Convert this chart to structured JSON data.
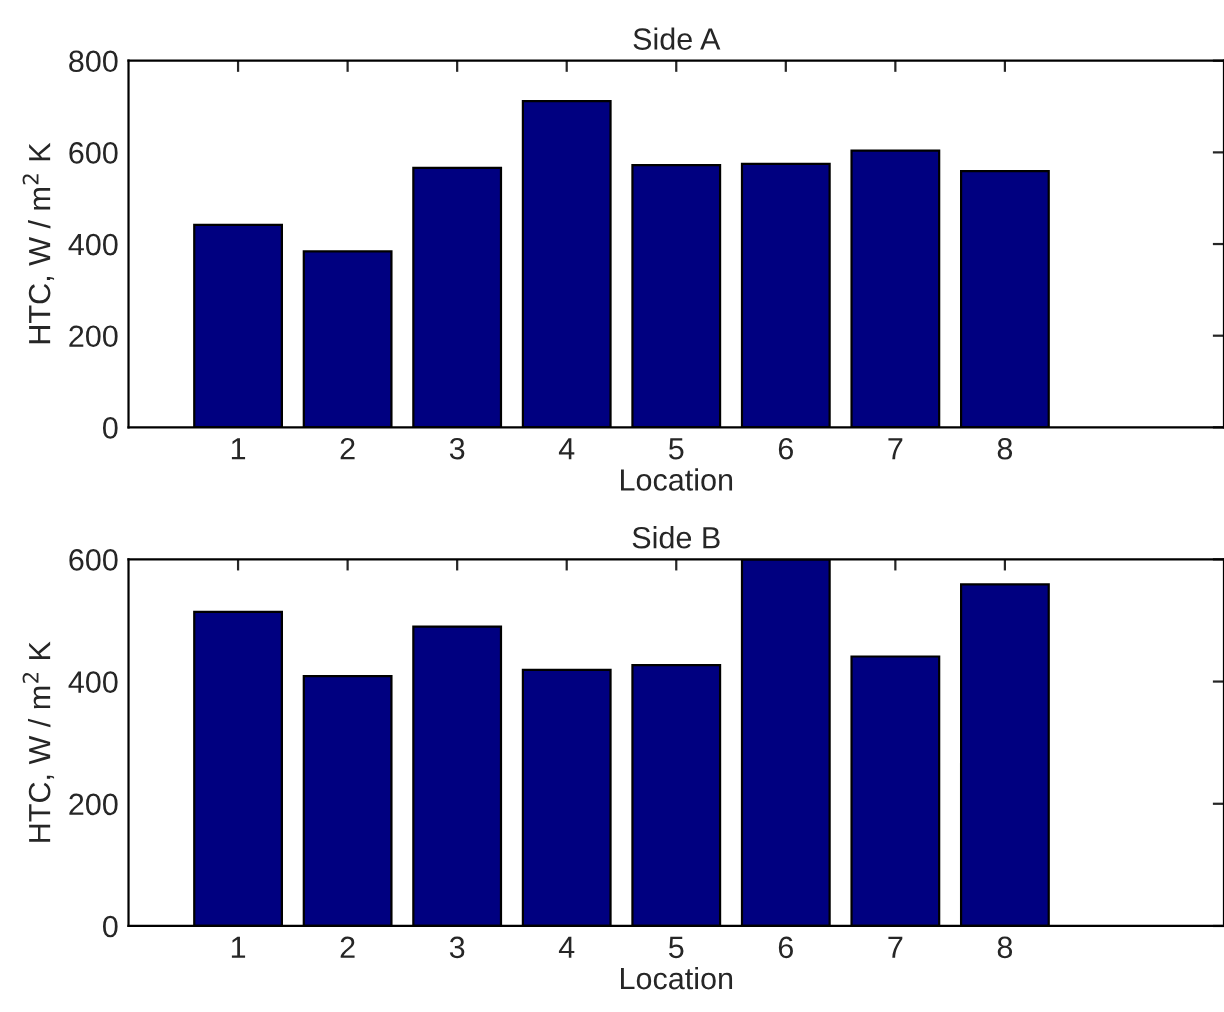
{
  "chart_data": [
    {
      "type": "bar",
      "title": "Side A",
      "xlabel": "Location",
      "ylabel": "HTC, W / m$^{2}$ K",
      "x": [
        1,
        2,
        3,
        4,
        5,
        6,
        7,
        8
      ],
      "values": [
        442,
        384,
        566,
        712,
        572,
        575,
        604,
        559
      ],
      "color": "#000080",
      "xlim": [
        0,
        10
      ],
      "xticks": [
        1,
        2,
        3,
        4,
        5,
        6,
        7,
        8
      ],
      "ylim": [
        0,
        800
      ],
      "yticks": [
        0,
        200,
        400,
        600,
        800
      ],
      "grid": false,
      "legend": false
    },
    {
      "type": "bar",
      "title": "Side B",
      "xlabel": "Location",
      "ylabel": "HTC, W / m$^{2}$ K",
      "x": [
        1,
        2,
        3,
        4,
        5,
        6,
        7,
        8
      ],
      "values": [
        514,
        409,
        490,
        419,
        427,
        600,
        441,
        559
      ],
      "color": "#000080",
      "xlim": [
        0,
        10
      ],
      "xticks": [
        1,
        2,
        3,
        4,
        5,
        6,
        7,
        8
      ],
      "ylim": [
        0,
        600
      ],
      "yticks": [
        0,
        200,
        400,
        600
      ],
      "grid": false,
      "legend": false
    }
  ]
}
